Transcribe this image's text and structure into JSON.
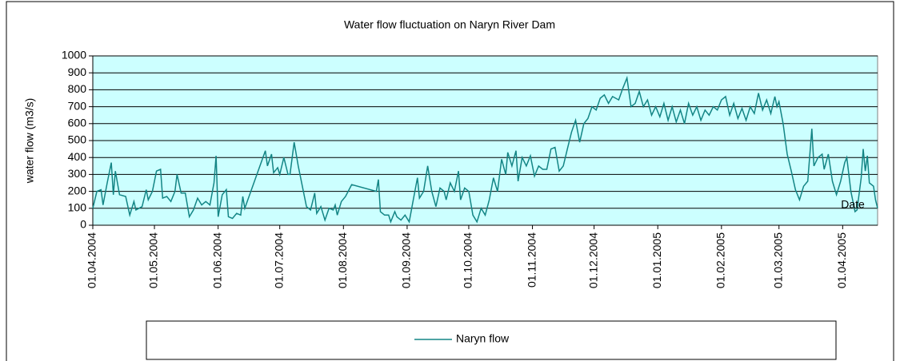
{
  "chart_data": {
    "type": "line",
    "title": "Water flow  fluctuation on Naryn River Dam",
    "y_label": "water flow (m3/s)",
    "x_label": "Date",
    "x": [
      "2004-04-01",
      "2004-04-03",
      "2004-04-05",
      "2004-04-06",
      "2004-04-08",
      "2004-04-10",
      "2004-04-11",
      "2004-04-12",
      "2004-04-14",
      "2004-04-17",
      "2004-04-19",
      "2004-04-21",
      "2004-04-22",
      "2004-04-25",
      "2004-04-27",
      "2004-04-28",
      "2004-04-30",
      "2004-05-02",
      "2004-05-04",
      "2004-05-05",
      "2004-05-07",
      "2004-05-09",
      "2004-05-11",
      "2004-05-12",
      "2004-05-14",
      "2004-05-16",
      "2004-05-18",
      "2004-05-20",
      "2004-05-22",
      "2004-05-24",
      "2004-05-26",
      "2004-05-28",
      "2004-05-30",
      "2004-05-31",
      "2004-06-01",
      "2004-06-03",
      "2004-06-05",
      "2004-06-06",
      "2004-06-08",
      "2004-06-10",
      "2004-06-12",
      "2004-06-13",
      "2004-06-14",
      "2004-06-24",
      "2004-06-25",
      "2004-06-27",
      "2004-06-28",
      "2004-06-30",
      "2004-07-01",
      "2004-07-03",
      "2004-07-05",
      "2004-07-06",
      "2004-07-08",
      "2004-07-10",
      "2004-07-14",
      "2004-07-16",
      "2004-07-18",
      "2004-07-19",
      "2004-07-21",
      "2004-07-23",
      "2004-07-25",
      "2004-07-27",
      "2004-07-28",
      "2004-07-29",
      "2004-07-31",
      "2004-08-02",
      "2004-08-05",
      "2004-08-17",
      "2004-08-18",
      "2004-08-19",
      "2004-08-21",
      "2004-08-23",
      "2004-08-24",
      "2004-08-26",
      "2004-08-27",
      "2004-08-29",
      "2004-08-31",
      "2004-09-02",
      "2004-09-04",
      "2004-09-06",
      "2004-09-07",
      "2004-09-09",
      "2004-09-11",
      "2004-09-13",
      "2004-09-15",
      "2004-09-17",
      "2004-09-19",
      "2004-09-20",
      "2004-09-22",
      "2004-09-24",
      "2004-09-26",
      "2004-09-27",
      "2004-09-29",
      "2004-10-01",
      "2004-10-03",
      "2004-10-05",
      "2004-10-07",
      "2004-10-09",
      "2004-10-11",
      "2004-10-13",
      "2004-10-15",
      "2004-10-17",
      "2004-10-19",
      "2004-10-20",
      "2004-10-22",
      "2004-10-24",
      "2004-10-25",
      "2004-10-27",
      "2004-10-29",
      "2004-10-31",
      "2004-11-02",
      "2004-11-04",
      "2004-11-06",
      "2004-11-08",
      "2004-11-10",
      "2004-11-12",
      "2004-11-14",
      "2004-11-16",
      "2004-11-18",
      "2004-11-20",
      "2004-11-22",
      "2004-11-24",
      "2004-11-26",
      "2004-11-28",
      "2004-11-30",
      "2004-12-02",
      "2004-12-04",
      "2004-12-06",
      "2004-12-08",
      "2004-12-10",
      "2004-12-13",
      "2004-12-15",
      "2004-12-17",
      "2004-12-19",
      "2004-12-21",
      "2004-12-23",
      "2004-12-25",
      "2004-12-27",
      "2004-12-29",
      "2004-12-31",
      "2005-01-02",
      "2005-01-04",
      "2005-01-06",
      "2005-01-08",
      "2005-01-10",
      "2005-01-12",
      "2005-01-14",
      "2005-01-16",
      "2005-01-18",
      "2005-01-20",
      "2005-01-22",
      "2005-01-24",
      "2005-01-26",
      "2005-01-28",
      "2005-01-30",
      "2005-02-01",
      "2005-02-03",
      "2005-02-05",
      "2005-02-07",
      "2005-02-09",
      "2005-02-11",
      "2005-02-13",
      "2005-02-15",
      "2005-02-17",
      "2005-02-19",
      "2005-02-21",
      "2005-02-23",
      "2005-02-25",
      "2005-02-27",
      "2005-02-28",
      "2005-03-01",
      "2005-03-03",
      "2005-03-05",
      "2005-03-07",
      "2005-03-09",
      "2005-03-11",
      "2005-03-13",
      "2005-03-15",
      "2005-03-17",
      "2005-03-18",
      "2005-03-20",
      "2005-03-22",
      "2005-03-23",
      "2005-03-25",
      "2005-03-27",
      "2005-03-29",
      "2005-03-31",
      "2005-04-02",
      "2005-04-03",
      "2005-04-05",
      "2005-04-07",
      "2005-04-08",
      "2005-04-10",
      "2005-04-11",
      "2005-04-12",
      "2005-04-13",
      "2005-04-14",
      "2005-04-16",
      "2005-04-17",
      "2005-04-18"
    ],
    "series": [
      {
        "name": "Naryn flow",
        "color": "#138585",
        "values": [
          100,
          200,
          210,
          120,
          250,
          370,
          180,
          320,
          180,
          170,
          60,
          140,
          90,
          110,
          210,
          150,
          200,
          320,
          330,
          160,
          170,
          140,
          200,
          300,
          190,
          190,
          50,
          90,
          160,
          120,
          140,
          120,
          250,
          410,
          50,
          180,
          210,
          50,
          40,
          70,
          60,
          170,
          100,
          440,
          350,
          420,
          310,
          340,
          300,
          400,
          300,
          300,
          490,
          350,
          110,
          90,
          190,
          70,
          110,
          30,
          100,
          90,
          120,
          60,
          140,
          170,
          240,
          200,
          270,
          80,
          60,
          60,
          20,
          80,
          50,
          30,
          60,
          20,
          150,
          280,
          160,
          200,
          350,
          200,
          110,
          220,
          200,
          150,
          250,
          200,
          320,
          150,
          220,
          200,
          60,
          20,
          100,
          60,
          150,
          280,
          200,
          390,
          300,
          430,
          350,
          440,
          260,
          400,
          350,
          410,
          290,
          350,
          330,
          330,
          450,
          460,
          320,
          350,
          450,
          550,
          620,
          490,
          600,
          630,
          700,
          680,
          750,
          770,
          720,
          760,
          740,
          810,
          870,
          700,
          720,
          790,
          700,
          740,
          650,
          700,
          640,
          720,
          620,
          700,
          610,
          680,
          600,
          720,
          650,
          700,
          620,
          680,
          650,
          700,
          680,
          740,
          760,
          650,
          720,
          630,
          690,
          620,
          700,
          660,
          780,
          680,
          740,
          660,
          760,
          700,
          730,
          600,
          420,
          320,
          210,
          150,
          230,
          260,
          570,
          350,
          400,
          420,
          330,
          420,
          260,
          180,
          260,
          370,
          400,
          200,
          80,
          90,
          280,
          450,
          320,
          410,
          250,
          230,
          150,
          100
        ]
      }
    ],
    "xlim": [
      "2004-04-01",
      "2005-04-18"
    ],
    "xticks": [
      {
        "value": "2004-04-01",
        "label": "01.04.2004"
      },
      {
        "value": "2004-05-01",
        "label": "01.05.2004"
      },
      {
        "value": "2004-06-01",
        "label": "01.06.2004"
      },
      {
        "value": "2004-07-01",
        "label": "01.07.2004"
      },
      {
        "value": "2004-08-01",
        "label": "01.08.2004"
      },
      {
        "value": "2004-09-01",
        "label": "01.09.2004"
      },
      {
        "value": "2004-10-01",
        "label": "01.10.2004"
      },
      {
        "value": "2004-11-01",
        "label": "01.11.2004"
      },
      {
        "value": "2004-12-01",
        "label": "01.12.2004"
      },
      {
        "value": "2005-01-01",
        "label": "01.01.2005"
      },
      {
        "value": "2005-02-01",
        "label": "01.02.2005"
      },
      {
        "value": "2005-03-01",
        "label": "01.03.2005"
      },
      {
        "value": "2005-04-01",
        "label": "01.04.2005"
      }
    ],
    "ylim": [
      0,
      1000
    ],
    "yticks": [
      0,
      100,
      200,
      300,
      400,
      500,
      600,
      700,
      800,
      900,
      1000
    ],
    "grid": true,
    "legend": "bottom",
    "plot_background": "#ccffff"
  }
}
